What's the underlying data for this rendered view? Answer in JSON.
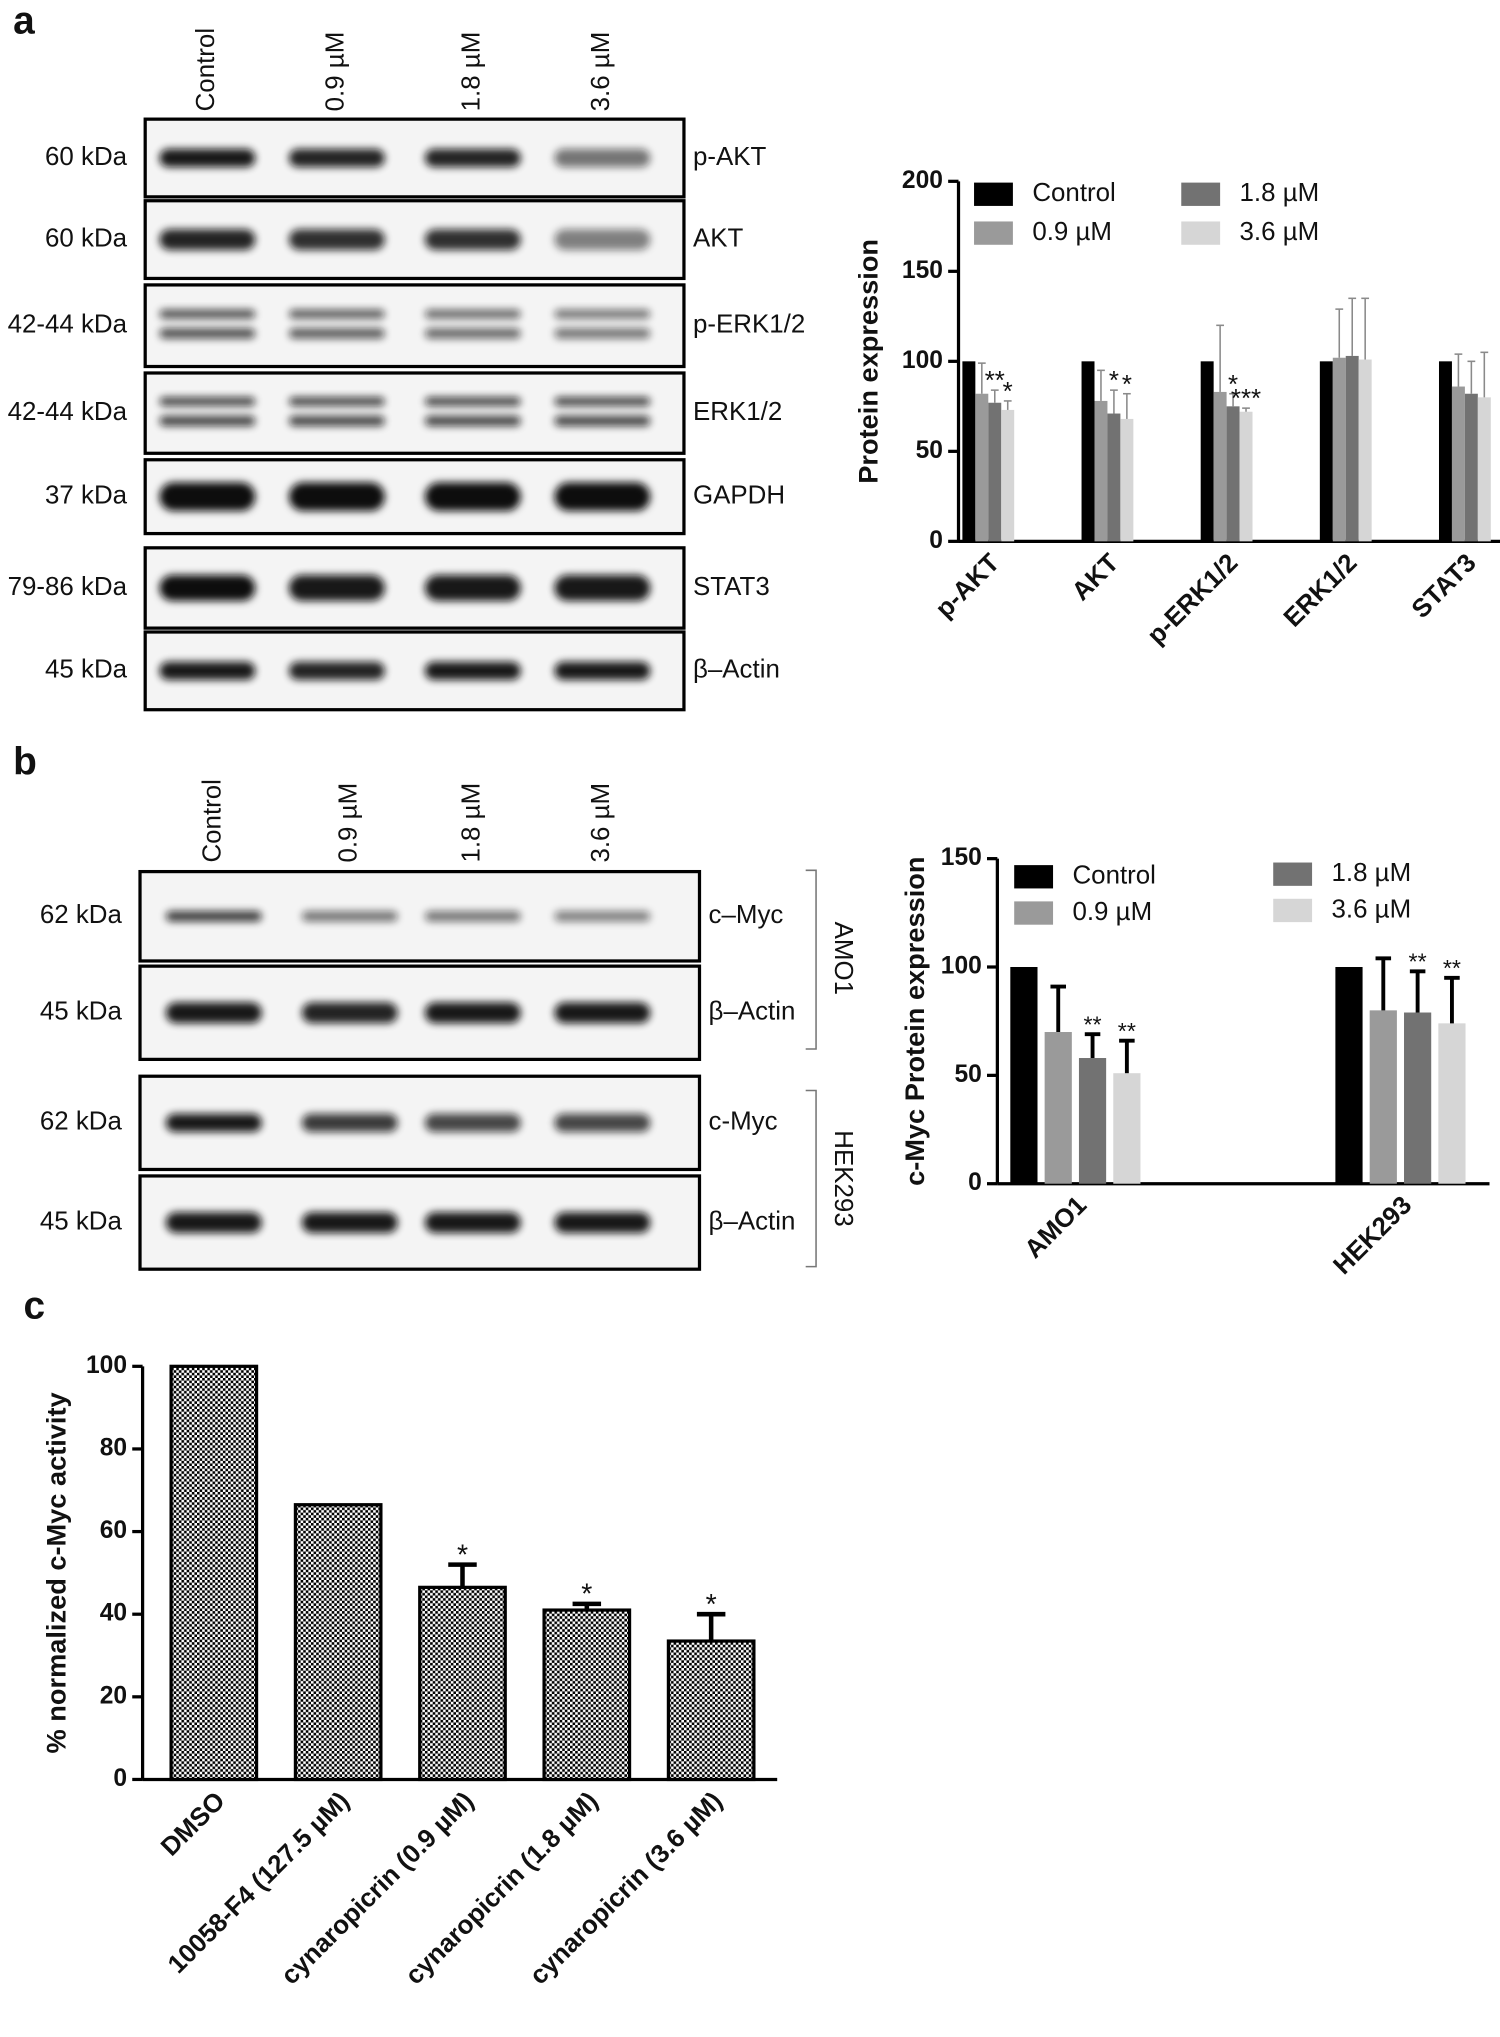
{
  "panel_labels": [
    "a",
    "b",
    "c"
  ],
  "blots": [
    {
      "lanes": [
        "Control",
        "0.9 µM",
        "1.8 µM",
        "3.6 µM"
      ],
      "rows": [
        {
          "mw": "60 kDa",
          "protein": "p-AKT"
        },
        {
          "mw": "60 kDa",
          "protein": "AKT"
        },
        {
          "mw": "42-44 kDa",
          "protein": "p-ERK1/2"
        },
        {
          "mw": "42-44 kDa",
          "protein": "ERK1/2"
        },
        {
          "mw": "37 kDa",
          "protein": "GAPDH"
        },
        {
          "mw": "79-86 kDa",
          "protein": "STAT3"
        },
        {
          "mw": "45 kDa",
          "protein": "β–Actin"
        }
      ]
    },
    {
      "lanes": [
        "Control",
        "0.9 µM",
        "1.8 µM",
        "3.6 µM"
      ],
      "groups": [
        {
          "name": "AMO1",
          "rows": [
            {
              "mw": "62 kDa",
              "protein": "c–Myc"
            },
            {
              "mw": "45 kDa",
              "protein": "β–Actin"
            }
          ]
        },
        {
          "name": "HEK293",
          "rows": [
            {
              "mw": "62 kDa",
              "protein": "c-Myc"
            },
            {
              "mw": "45 kDa",
              "protein": "β–Actin"
            }
          ]
        }
      ]
    }
  ],
  "chart_data": [
    {
      "type": "bar",
      "y_label": "Protein expression",
      "categories": [
        "p-AKT",
        "AKT",
        "p-ERK1/2",
        "ERK1/2",
        "STAT3"
      ],
      "ylim": [
        0,
        200
      ],
      "yticks": [
        0,
        50,
        100,
        150,
        200
      ],
      "legend": "top-left",
      "series": [
        {
          "name": "Control",
          "color": "#000000",
          "values": [
            100,
            100,
            100,
            100,
            100
          ],
          "errors": [
            null,
            null,
            null,
            null,
            null
          ],
          "annotations": [
            null,
            null,
            null,
            null,
            null
          ]
        },
        {
          "name": "0.9 µM",
          "color": "#9a9a9a",
          "values": [
            82,
            78,
            83,
            102,
            86
          ],
          "errors": [
            17,
            17,
            37,
            27,
            18
          ],
          "annotations": [
            null,
            null,
            null,
            null,
            null
          ]
        },
        {
          "name": "1.8 µM",
          "color": "#727272",
          "values": [
            77,
            71,
            75,
            103,
            82
          ],
          "errors": [
            7,
            13,
            7,
            32,
            18
          ],
          "annotations": [
            "**",
            "*",
            "*",
            null,
            null
          ]
        },
        {
          "name": "3.6 µM",
          "color": "#d6d6d6",
          "values": [
            73,
            68,
            72,
            101,
            80
          ],
          "errors": [
            5,
            14,
            2,
            34,
            25
          ],
          "annotations": [
            "*",
            "*",
            "***",
            null,
            null
          ]
        }
      ]
    },
    {
      "type": "bar",
      "y_label": "c-Myc Protein expression",
      "categories": [
        "AMO1",
        "HEK293"
      ],
      "ylim": [
        0,
        150
      ],
      "yticks": [
        0,
        50,
        100,
        150
      ],
      "legend": "top-left",
      "series": [
        {
          "name": "Control",
          "color": "#000000",
          "values": [
            100,
            100
          ],
          "errors": [
            null,
            null
          ],
          "annotations": [
            null,
            null
          ]
        },
        {
          "name": "0.9 µM",
          "color": "#9a9a9a",
          "values": [
            70,
            80
          ],
          "errors": [
            21,
            24
          ],
          "annotations": [
            null,
            null
          ]
        },
        {
          "name": "1.8 µM",
          "color": "#727272",
          "values": [
            58,
            79
          ],
          "errors": [
            11,
            19
          ],
          "annotations": [
            "**",
            "**"
          ]
        },
        {
          "name": "3.6 µM",
          "color": "#d6d6d6",
          "values": [
            51,
            74
          ],
          "errors": [
            15,
            21
          ],
          "annotations": [
            "**",
            "**"
          ]
        }
      ]
    },
    {
      "type": "bar",
      "y_label": "% normalized c-Myc activity",
      "categories": [
        "DMSO",
        "10058-F4 (127.5 µM)",
        "cynaropicrin (0.9 µM)",
        "cynaropicrin (1.8 µM)",
        "cynaropicrin (3.6 µM)"
      ],
      "values": [
        100,
        66.5,
        46.5,
        41,
        33.5
      ],
      "errors": [
        null,
        null,
        5.5,
        1.5,
        6.5
      ],
      "annotations": [
        null,
        null,
        "*",
        "*",
        "*"
      ],
      "color": "#000000",
      "fill_pattern": "checkerboard",
      "ylim": [
        0,
        100
      ],
      "yticks": [
        0,
        20,
        40,
        60,
        80,
        100
      ]
    }
  ]
}
